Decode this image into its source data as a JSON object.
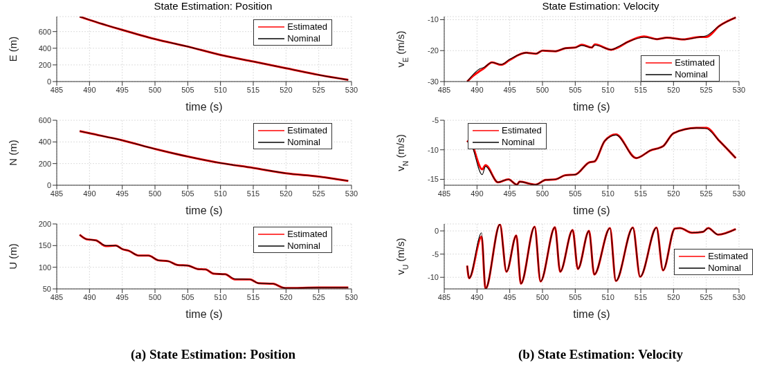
{
  "chart_data": [
    {
      "type": "line",
      "title": "State Estimation: Position",
      "xlabel": "time (s)",
      "ylabel": "E (m)",
      "xlim": [
        485,
        530
      ],
      "xticks": [
        485,
        490,
        495,
        500,
        505,
        510,
        515,
        520,
        525,
        530
      ],
      "ylim": [
        0,
        780
      ],
      "yticks": [
        0,
        200,
        400,
        600
      ],
      "grid": true,
      "legend": "top right",
      "x": [
        488.5,
        490,
        495,
        500,
        505,
        510,
        515,
        520,
        525,
        529.5
      ],
      "series": [
        {
          "name": "Estimated",
          "color": "#ff0000",
          "values": [
            780,
            740,
            620,
            510,
            420,
            320,
            240,
            160,
            80,
            20
          ]
        },
        {
          "name": "Nominal",
          "color": "#000000",
          "values": [
            780,
            740,
            620,
            510,
            420,
            320,
            240,
            160,
            80,
            20
          ]
        }
      ]
    },
    {
      "type": "line",
      "xlabel": "time (s)",
      "ylabel": "N (m)",
      "xlim": [
        485,
        530
      ],
      "xticks": [
        485,
        490,
        495,
        500,
        505,
        510,
        515,
        520,
        525,
        530
      ],
      "ylim": [
        0,
        600
      ],
      "yticks": [
        0,
        200,
        400,
        600
      ],
      "grid": true,
      "legend": "top right",
      "x": [
        488.5,
        490,
        495,
        500,
        505,
        510,
        515,
        520,
        525,
        529.5
      ],
      "series": [
        {
          "name": "Estimated",
          "color": "#ff0000",
          "values": [
            500,
            480,
            415,
            335,
            265,
            205,
            160,
            110,
            80,
            40
          ]
        },
        {
          "name": "Nominal",
          "color": "#000000",
          "values": [
            500,
            480,
            415,
            335,
            265,
            205,
            160,
            110,
            80,
            40
          ]
        }
      ]
    },
    {
      "type": "line",
      "xlabel": "time (s)",
      "ylabel": "U (m)",
      "xlim": [
        485,
        530
      ],
      "xticks": [
        485,
        490,
        495,
        500,
        505,
        510,
        515,
        520,
        525,
        530
      ],
      "ylim": [
        50,
        200
      ],
      "yticks": [
        50,
        100,
        150,
        200
      ],
      "grid": true,
      "legend": "top right",
      "annotations": [
        "(a) State Estimation: Position"
      ],
      "x": [
        488.5,
        489.5,
        491,
        492.5,
        494,
        495,
        496,
        497.5,
        499,
        500.5,
        502,
        503.5,
        505,
        506.5,
        507.7,
        509,
        510.7,
        512.2,
        514.5,
        515.8,
        518,
        519.5,
        520,
        525,
        529.5
      ],
      "series": [
        {
          "name": "Estimated",
          "color": "#ff0000",
          "values": [
            175,
            165,
            162,
            149,
            150,
            142,
            138,
            127,
            127,
            116,
            114,
            105,
            104,
            96,
            95,
            85,
            84,
            72,
            72,
            63,
            62,
            53,
            52,
            53,
            53
          ]
        },
        {
          "name": "Nominal",
          "color": "#000000",
          "values": [
            175,
            165,
            162,
            150,
            150,
            142,
            138,
            127,
            127,
            116,
            114,
            105,
            104,
            96,
            95,
            85,
            84,
            73,
            72,
            63,
            62,
            53,
            52,
            53,
            53
          ]
        }
      ]
    },
    {
      "type": "line",
      "title": "State Estimation: Velocity",
      "xlabel": "time (s)",
      "ylabel": "v$_{E}$ (m/s)",
      "xlim": [
        485,
        530
      ],
      "xticks": [
        485,
        490,
        495,
        500,
        505,
        510,
        515,
        520,
        525,
        530
      ],
      "ylim": [
        -30,
        -9
      ],
      "yticks": [
        -30,
        -20,
        -10
      ],
      "grid": true,
      "legend": "bottom right",
      "x": [
        488.5,
        489.5,
        490.5,
        491,
        492.3,
        493.7,
        495,
        497.5,
        499,
        500,
        502,
        503.5,
        505,
        506,
        507.5,
        508,
        510.5,
        511.5,
        513,
        515.5,
        517.5,
        519,
        521.5,
        524,
        525,
        527,
        529.5
      ],
      "series": [
        {
          "name": "Estimated",
          "color": "#ff0000",
          "values": [
            -30,
            -28,
            -26.5,
            -25.8,
            -23.8,
            -24.6,
            -23,
            -20.7,
            -21,
            -20,
            -20.2,
            -19.2,
            -19,
            -18.1,
            -19,
            -18,
            -19.7,
            -19,
            -17.2,
            -15.4,
            -16.3,
            -15.8,
            -16.4,
            -15.6,
            -15.6,
            -12,
            -9.3
          ]
        },
        {
          "name": "Nominal",
          "color": "#000000",
          "values": [
            -30,
            -27.5,
            -25.8,
            -25.5,
            -23.8,
            -24.5,
            -22.8,
            -20.7,
            -21,
            -20,
            -20.2,
            -19.2,
            -19,
            -18.3,
            -19,
            -18.2,
            -19.7,
            -18.8,
            -17.2,
            -15.7,
            -16.3,
            -15.8,
            -16.4,
            -15.6,
            -15.2,
            -12,
            -9.3
          ]
        }
      ]
    },
    {
      "type": "line",
      "xlabel": "time (s)",
      "ylabel": "v$_{N}$ (m/s)",
      "xlim": [
        485,
        530
      ],
      "xticks": [
        485,
        490,
        495,
        500,
        505,
        510,
        515,
        520,
        525,
        530
      ],
      "ylim": [
        -16,
        -5
      ],
      "yticks": [
        -15,
        -10,
        -5
      ],
      "grid": true,
      "legend": "top left",
      "x": [
        488.5,
        488.8,
        490.8,
        491.3,
        493.2,
        494.8,
        496.1,
        496.5,
        498.9,
        500.5,
        502,
        503.5,
        505,
        507.2,
        507.9,
        509.5,
        511.2,
        514.3,
        516.5,
        518.4,
        520,
        523.5,
        525,
        527,
        529.5
      ],
      "series": [
        {
          "name": "Estimated",
          "color": "#ff0000",
          "values": [
            -8.7,
            -8.4,
            -13.3,
            -12.6,
            -15.5,
            -15,
            -15.9,
            -15.4,
            -15.9,
            -15.1,
            -15,
            -14.3,
            -14.2,
            -12.1,
            -12,
            -8.5,
            -7.4,
            -11.4,
            -10.1,
            -9.4,
            -7.2,
            -6.3,
            -6.3,
            -8.5,
            -11.4
          ]
        },
        {
          "name": "Nominal",
          "color": "#000000",
          "values": [
            -8.7,
            -8.5,
            -14.2,
            -12.8,
            -15.5,
            -15,
            -15.9,
            -15.4,
            -15.9,
            -15.1,
            -15,
            -14.3,
            -14.2,
            -12.1,
            -12,
            -8.5,
            -7.5,
            -11.4,
            -10.1,
            -9.4,
            -7.2,
            -6.3,
            -6.4,
            -8.5,
            -11.4
          ]
        }
      ]
    },
    {
      "type": "line",
      "xlabel": "time (s)",
      "ylabel": "v$_{U}$ (m/s)",
      "xlim": [
        485,
        530
      ],
      "xticks": [
        485,
        490,
        495,
        500,
        505,
        510,
        515,
        520,
        525,
        530
      ],
      "ylim": [
        -12.5,
        1.5
      ],
      "yticks": [
        -10,
        -5,
        0
      ],
      "grid": true,
      "legend": "right",
      "annotations": [
        "(b) State Estimation: Velocity"
      ],
      "x": [
        488.5,
        488.8,
        490.7,
        491.3,
        493.5,
        494.5,
        496,
        496.7,
        498.8,
        499.7,
        501.9,
        502.7,
        504.6,
        505.4,
        507.1,
        507.9,
        510.3,
        511.2,
        513.8,
        514.9,
        517.4,
        518.4,
        520.2,
        521,
        522.8,
        524.5,
        525.3,
        526.8,
        529.5
      ],
      "series": [
        {
          "name": "Estimated",
          "color": "#ff0000",
          "values": [
            -7.5,
            -10.2,
            -1.2,
            -12.5,
            1.4,
            -8.8,
            -1,
            -11.4,
            0.9,
            -10.9,
            0.8,
            -8.8,
            0.2,
            -8.2,
            0,
            -9.4,
            0.6,
            -10.8,
            0.7,
            -9.9,
            0.7,
            -8.5,
            0.5,
            0.6,
            -0.4,
            -0.2,
            0.6,
            -0.8,
            0.4
          ]
        },
        {
          "name": "Nominal",
          "color": "#000000",
          "values": [
            -7.5,
            -10.2,
            -0.4,
            -12.5,
            1.4,
            -8.8,
            -1,
            -11.4,
            0.9,
            -10.9,
            0.8,
            -8.8,
            0.2,
            -8.2,
            0,
            -9.4,
            0.6,
            -10.8,
            0.7,
            -9.9,
            0.7,
            -8.5,
            0.5,
            0.6,
            -0.4,
            -0.2,
            0.6,
            -0.8,
            0.4
          ]
        }
      ]
    }
  ]
}
